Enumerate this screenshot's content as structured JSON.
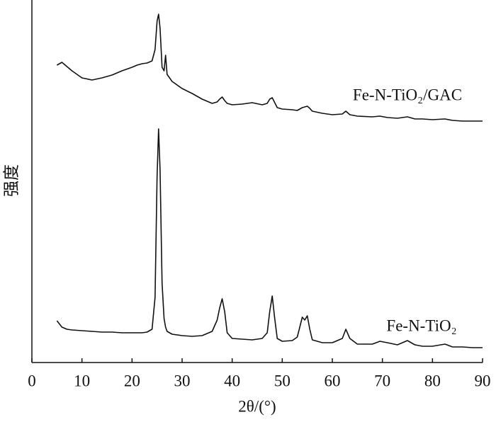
{
  "chart_data": {
    "type": "line",
    "x_label": "2θ/(°)",
    "y_label": "强度",
    "x": [
      5,
      6,
      7,
      8,
      10,
      12,
      14,
      16,
      18,
      20,
      21,
      22,
      23,
      24,
      24.6,
      25,
      25.3,
      25.6,
      26,
      26.4,
      26.7,
      27,
      28,
      30,
      32,
      34,
      36,
      37,
      37.5,
      38,
      38.5,
      39,
      40,
      42,
      44,
      46,
      47,
      47.5,
      48,
      48.5,
      49,
      50,
      52,
      53,
      54,
      54.5,
      55,
      55.5,
      56,
      58,
      60,
      62,
      62.7,
      63.5,
      65,
      68,
      69.5,
      71,
      73,
      75,
      76.5,
      78,
      80,
      82.5,
      84,
      86,
      88,
      90
    ],
    "series": [
      {
        "name": "Fe-N-TiO₂/GAC",
        "color": "#111111",
        "values": [
          420,
          424,
          418,
          412,
          402,
          399,
          402,
          406,
          412,
          417,
          420,
          422,
          423,
          426,
          442,
          482,
          492,
          472,
          417,
          412,
          434,
          407,
          397,
          387,
          380,
          372,
          366,
          368,
          372,
          375,
          370,
          366,
          364,
          365,
          367,
          364,
          366,
          372,
          374,
          367,
          360,
          358,
          357,
          356,
          360,
          361,
          362,
          359,
          355,
          352,
          350,
          351,
          355,
          350,
          348,
          347,
          348,
          346,
          345,
          347,
          344,
          344,
          343,
          344,
          342,
          341,
          341,
          341
        ]
      },
      {
        "name": "Fe-N-TiO₂",
        "color": "#111111",
        "values": [
          59,
          50,
          47,
          46,
          45,
          44,
          43,
          43,
          42,
          42,
          42,
          42,
          43,
          47,
          92,
          262,
          330,
          272,
          112,
          62,
          50,
          44,
          40,
          38,
          37,
          38,
          44,
          60,
          77,
          90,
          72,
          42,
          34,
          33,
          32,
          34,
          42,
          72,
          94,
          62,
          34,
          30,
          31,
          36,
          64,
          60,
          66,
          47,
          32,
          28,
          28,
          34,
          47,
          34,
          26,
          26,
          30,
          28,
          25,
          31,
          25,
          23,
          23,
          26,
          22,
          22,
          21,
          21
        ]
      }
    ],
    "xlim": [
      0,
      90
    ],
    "xticks": [
      0,
      10,
      20,
      30,
      40,
      50,
      60,
      70,
      80,
      90
    ],
    "ylim": [
      0,
      512
    ]
  }
}
